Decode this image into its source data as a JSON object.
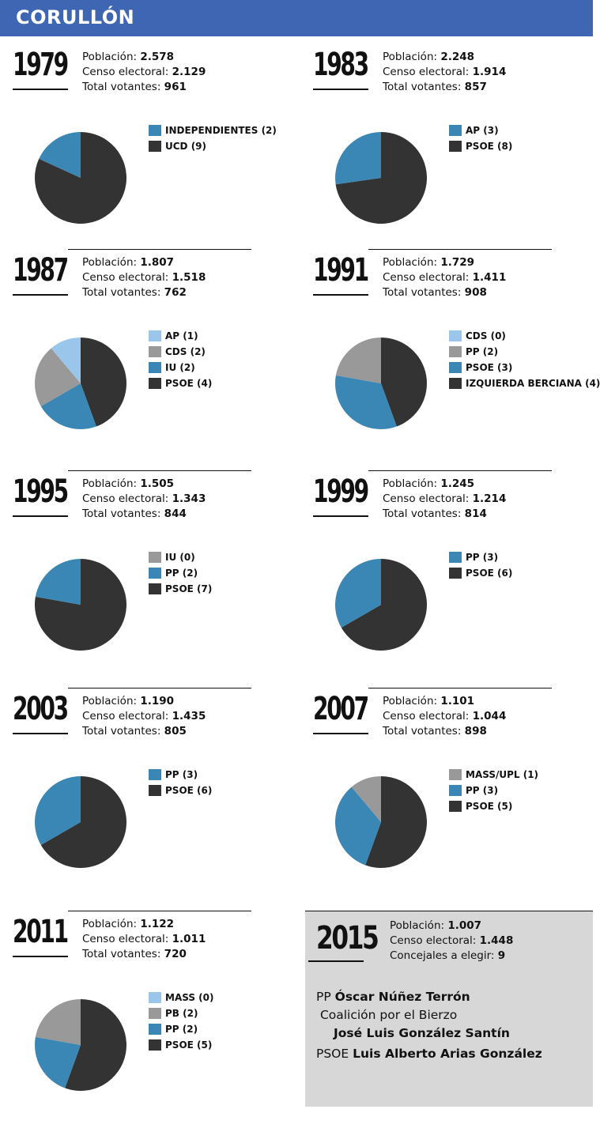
{
  "header": {
    "title": "CORULLÓN"
  },
  "labels": {
    "poblacion": "Población:",
    "censo": "Censo electoral:",
    "votantes": "Total votantes:",
    "concejales": "Concejales a elegir:"
  },
  "colors": {
    "dark": "#333333",
    "blue": "#3a87b5",
    "gray": "#999999",
    "light": "#99c6ea",
    "header": "#3f66b2"
  },
  "chart_data": [
    {
      "type": "pie",
      "title": "1979",
      "poblacion": "2.578",
      "censo": "2.129",
      "votantes": "961",
      "slices": [
        {
          "label": "INDEPENDIENTES (2)",
          "value": 2,
          "color": "#3a87b5"
        },
        {
          "label": "UCD (9)",
          "value": 9,
          "color": "#333333"
        }
      ]
    },
    {
      "type": "pie",
      "title": "1983",
      "poblacion": "2.248",
      "censo": "1.914",
      "votantes": "857",
      "slices": [
        {
          "label": "AP (3)",
          "value": 3,
          "color": "#3a87b5"
        },
        {
          "label": "PSOE (8)",
          "value": 8,
          "color": "#333333"
        }
      ]
    },
    {
      "type": "pie",
      "title": "1987",
      "poblacion": "1.807",
      "censo": "1.518",
      "votantes": "762",
      "slices": [
        {
          "label": "AP (1)",
          "value": 1,
          "color": "#99c6ea"
        },
        {
          "label": "CDS (2)",
          "value": 2,
          "color": "#999999"
        },
        {
          "label": "IU (2)",
          "value": 2,
          "color": "#3a87b5"
        },
        {
          "label": "PSOE (4)",
          "value": 4,
          "color": "#333333"
        }
      ]
    },
    {
      "type": "pie",
      "title": "1991",
      "poblacion": "1.729",
      "censo": "1.411",
      "votantes": "908",
      "slices": [
        {
          "label": "CDS (0)",
          "value": 0,
          "color": "#99c6ea"
        },
        {
          "label": "PP (2)",
          "value": 2,
          "color": "#999999"
        },
        {
          "label": "PSOE (3)",
          "value": 3,
          "color": "#3a87b5"
        },
        {
          "label": "IZQUIERDA BERCIANA (4)",
          "value": 4,
          "color": "#333333"
        }
      ]
    },
    {
      "type": "pie",
      "title": "1995",
      "poblacion": "1.505",
      "censo": "1.343",
      "votantes": "844",
      "slices": [
        {
          "label": "IU (0)",
          "value": 0,
          "color": "#999999"
        },
        {
          "label": "PP (2)",
          "value": 2,
          "color": "#3a87b5"
        },
        {
          "label": "PSOE (7)",
          "value": 7,
          "color": "#333333"
        }
      ]
    },
    {
      "type": "pie",
      "title": "1999",
      "poblacion": "1.245",
      "censo": "1.214",
      "votantes": "814",
      "slices": [
        {
          "label": "PP (3)",
          "value": 3,
          "color": "#3a87b5"
        },
        {
          "label": "PSOE (6)",
          "value": 6,
          "color": "#333333"
        }
      ]
    },
    {
      "type": "pie",
      "title": "2003",
      "poblacion": "1.190",
      "censo": "1.435",
      "votantes": "805",
      "slices": [
        {
          "label": "PP (3)",
          "value": 3,
          "color": "#3a87b5"
        },
        {
          "label": "PSOE (6)",
          "value": 6,
          "color": "#333333"
        }
      ]
    },
    {
      "type": "pie",
      "title": "2007",
      "poblacion": "1.101",
      "censo": "1.044",
      "votantes": "898",
      "slices": [
        {
          "label": "MASS/UPL (1)",
          "value": 1,
          "color": "#999999"
        },
        {
          "label": "PP (3)",
          "value": 3,
          "color": "#3a87b5"
        },
        {
          "label": "PSOE (5)",
          "value": 5,
          "color": "#333333"
        }
      ]
    },
    {
      "type": "pie",
      "title": "2011",
      "poblacion": "1.122",
      "censo": "1.011",
      "votantes": "720",
      "slices": [
        {
          "label": "MASS (0)",
          "value": 0,
          "color": "#99c6ea"
        },
        {
          "label": "PB (2)",
          "value": 2,
          "color": "#999999"
        },
        {
          "label": "PP (2)",
          "value": 2,
          "color": "#3a87b5"
        },
        {
          "label": "PSOE (5)",
          "value": 5,
          "color": "#333333"
        }
      ]
    }
  ],
  "box2015": {
    "year": "2015",
    "poblacion": "1.007",
    "censo": "1.448",
    "concejales": "9",
    "candidates": [
      {
        "party": "PP",
        "name": "Óscar Núñez Terrón"
      },
      {
        "party": "Coalición por el Bierzo",
        "name": "José Luis González Santín"
      },
      {
        "party": "PSOE",
        "name": "Luis Alberto Arias González"
      }
    ]
  }
}
